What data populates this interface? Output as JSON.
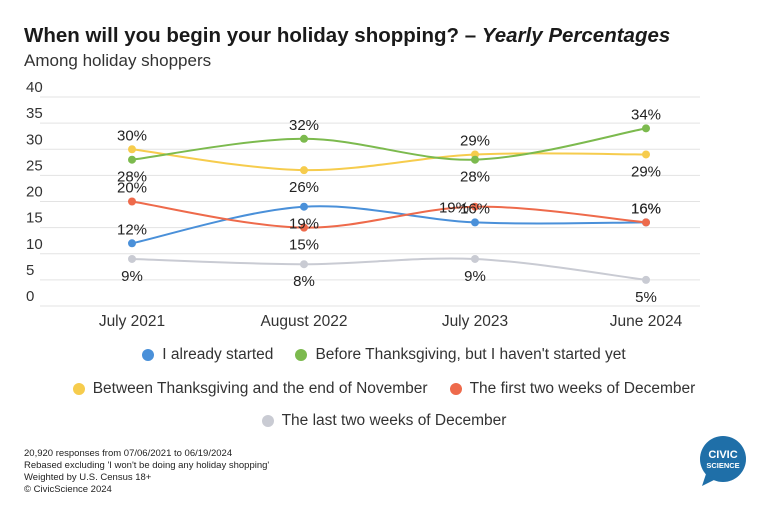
{
  "title": {
    "main": "When will you begin your holiday shopping?",
    "dash": "–",
    "italic": "Yearly Percentages",
    "subtitle": "Among holiday shoppers"
  },
  "chart_data": {
    "type": "line",
    "x": [
      "July 2021",
      "August 2022",
      "July 2023",
      "June 2024"
    ],
    "ylim": [
      0,
      40
    ],
    "yticks": [
      0,
      5,
      10,
      15,
      20,
      25,
      30,
      35,
      40
    ],
    "grid": true,
    "legend": "bottom",
    "series": [
      {
        "name": "I already started",
        "color": "#4a90d9",
        "values": [
          12,
          19,
          16,
          16
        ],
        "labels": [
          "12%",
          "19%",
          "16%",
          "16%"
        ]
      },
      {
        "name": "Before Thanksgiving, but I haven't started yet",
        "color": "#7cba4e",
        "values": [
          28,
          32,
          28,
          34
        ],
        "labels": [
          "28%",
          "32%",
          "28%",
          "34%"
        ]
      },
      {
        "name": "Between Thanksgiving and the end of November",
        "color": "#f6cc4d",
        "values": [
          30,
          26,
          29,
          29
        ],
        "labels": [
          "30%",
          "26%",
          "29%",
          "29%"
        ]
      },
      {
        "name": "The first two weeks of December",
        "color": "#ee6a4b",
        "values": [
          20,
          15,
          19,
          16
        ],
        "labels": [
          "20%",
          "15%",
          "19%",
          "16%"
        ]
      },
      {
        "name": "The last two weeks of December",
        "color": "#c9cbd3",
        "values": [
          9,
          8,
          9,
          5
        ],
        "labels": [
          "9%",
          "8%",
          "9%",
          "5%"
        ]
      }
    ]
  },
  "legend_rows": [
    [
      0,
      1
    ],
    [
      2,
      3
    ],
    [
      4
    ]
  ],
  "footnotes": [
    "20,920 responses from 07/06/2021 to 06/19/2024",
    "Rebased excluding 'I won't be doing any holiday shopping'",
    "Weighted by U.S. Census 18+",
    "© CivicScience 2024"
  ],
  "logo": {
    "line1": "CIVIC",
    "line2": "SCIENCE",
    "color": "#1f6fa8"
  }
}
